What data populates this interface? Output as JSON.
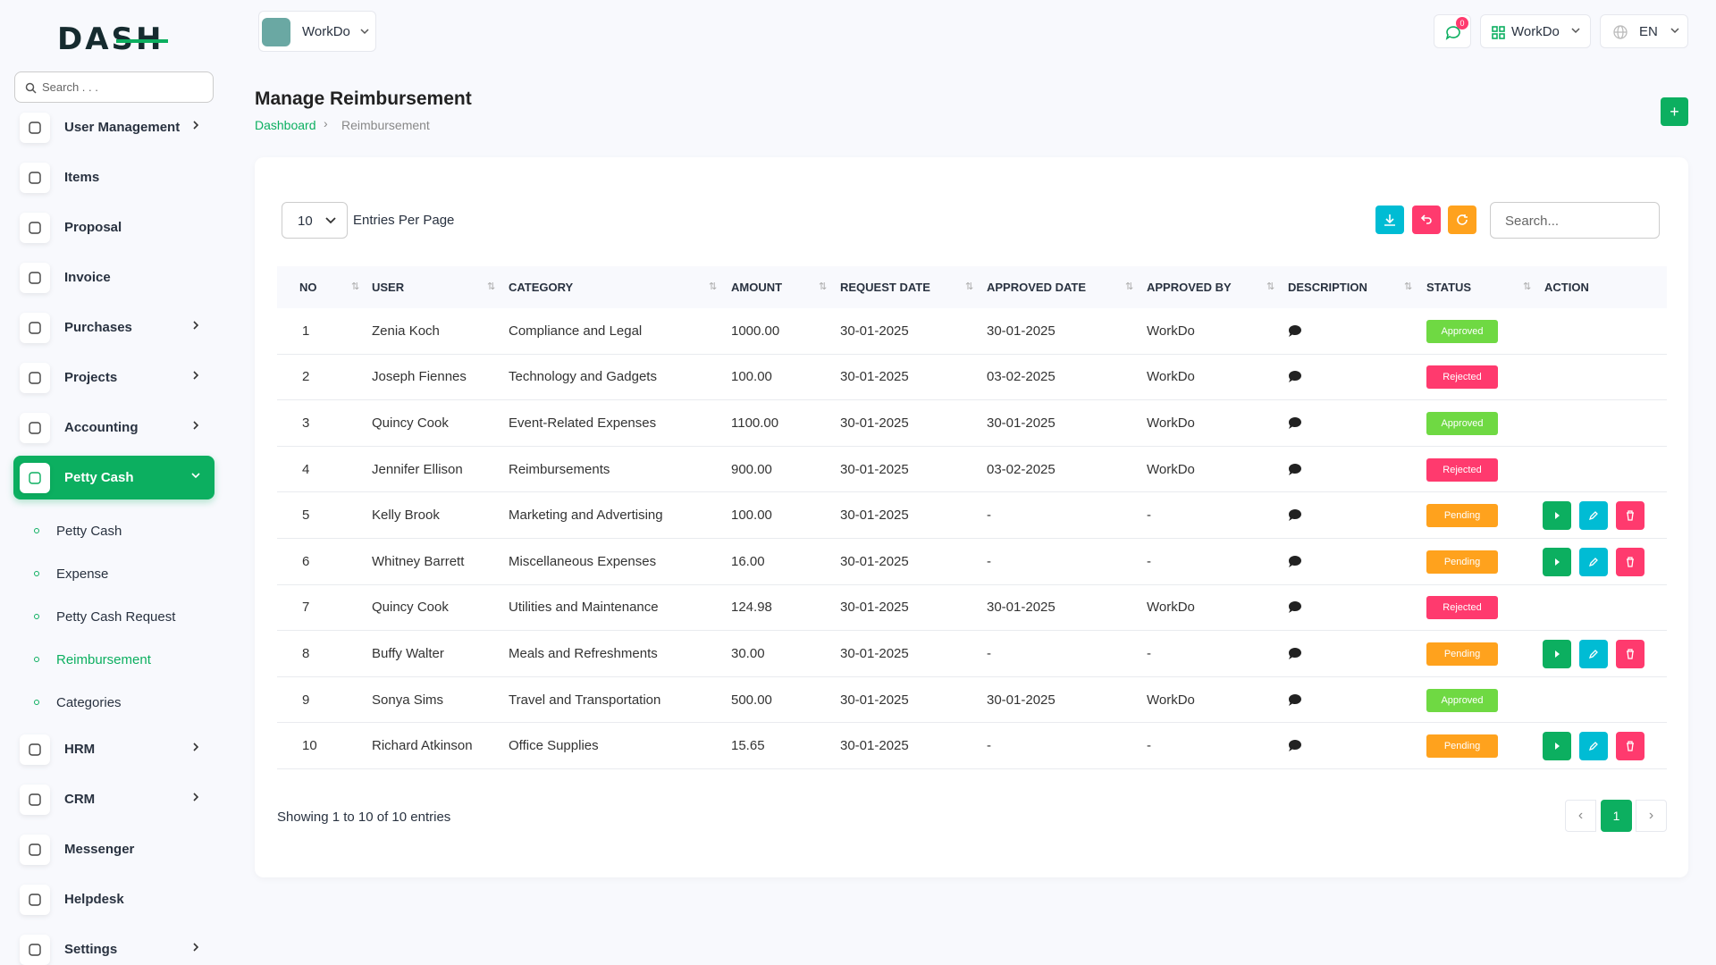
{
  "header": {
    "logo": "DASH",
    "workspace": "WorkDo",
    "notifications": "0",
    "user": "WorkDo",
    "language": "EN"
  },
  "sidebar": {
    "search_placeholder": "Search . . .",
    "menu": [
      {
        "label": "User Management",
        "arrow": true
      },
      {
        "label": "Items",
        "arrow": false
      },
      {
        "label": "Proposal",
        "arrow": false
      },
      {
        "label": "Invoice",
        "arrow": false
      },
      {
        "label": "Purchases",
        "arrow": true
      },
      {
        "label": "Projects",
        "arrow": true
      },
      {
        "label": "Accounting",
        "arrow": true
      },
      {
        "label": "Petty Cash",
        "arrow": true,
        "active": true,
        "submenu": [
          "Petty Cash",
          "Expense",
          "Petty Cash Request",
          "Reimbursement",
          "Categories"
        ],
        "active_sub": 3
      },
      {
        "label": "HRM",
        "arrow": true
      },
      {
        "label": "CRM",
        "arrow": true
      },
      {
        "label": "Messenger",
        "arrow": false
      },
      {
        "label": "Helpdesk",
        "arrow": false
      },
      {
        "label": "Settings",
        "arrow": true
      }
    ]
  },
  "page": {
    "title": "Manage Reimbursement",
    "breadcrumb": [
      "Dashboard",
      "Reimbursement"
    ]
  },
  "table": {
    "entries": "10",
    "entries_label": "Entries Per Page",
    "search_placeholder": "Search...",
    "columns": [
      "NO",
      "USER",
      "CATEGORY",
      "AMOUNT",
      "REQUEST DATE",
      "APPROVED DATE",
      "APPROVED BY",
      "DESCRIPTION",
      "STATUS",
      "ACTION"
    ],
    "status_colors": {
      "Approved": "#6fd943",
      "Rejected": "#ff3a6e",
      "Pending": "#ffa21d"
    },
    "rows": [
      {
        "cells": [
          "1",
          "Zenia Koch",
          "Compliance and Legal",
          "1000.00",
          "30-01-2025",
          "30-01-2025",
          "WorkDo",
          "Approved"
        ],
        "actions": false
      },
      {
        "cells": [
          "2",
          "Joseph Fiennes",
          "Technology and Gadgets",
          "100.00",
          "30-01-2025",
          "03-02-2025",
          "WorkDo",
          "Rejected"
        ],
        "actions": false
      },
      {
        "cells": [
          "3",
          "Quincy Cook",
          "Event-Related Expenses",
          "1100.00",
          "30-01-2025",
          "30-01-2025",
          "WorkDo",
          "Approved"
        ],
        "actions": false
      },
      {
        "cells": [
          "4",
          "Jennifer Ellison",
          "Reimbursements",
          "900.00",
          "30-01-2025",
          "03-02-2025",
          "WorkDo",
          "Rejected"
        ],
        "actions": false
      },
      {
        "cells": [
          "5",
          "Kelly Brook",
          "Marketing and Advertising",
          "100.00",
          "30-01-2025",
          "-",
          "-",
          "Pending"
        ],
        "actions": true
      },
      {
        "cells": [
          "6",
          "Whitney Barrett",
          "Miscellaneous Expenses",
          "16.00",
          "30-01-2025",
          "-",
          "-",
          "Pending"
        ],
        "actions": true
      },
      {
        "cells": [
          "7",
          "Quincy Cook",
          "Utilities and Maintenance",
          "124.98",
          "30-01-2025",
          "30-01-2025",
          "WorkDo",
          "Rejected"
        ],
        "actions": false
      },
      {
        "cells": [
          "8",
          "Buffy Walter",
          "Meals and Refreshments",
          "30.00",
          "30-01-2025",
          "-",
          "-",
          "Pending"
        ],
        "actions": true
      },
      {
        "cells": [
          "9",
          "Sonya Sims",
          "Travel and Transportation",
          "500.00",
          "30-01-2025",
          "30-01-2025",
          "WorkDo",
          "Approved"
        ],
        "actions": false
      },
      {
        "cells": [
          "10",
          "Richard Atkinson",
          "Office Supplies",
          "15.65",
          "30-01-2025",
          "-",
          "-",
          "Pending"
        ],
        "actions": true
      }
    ],
    "footer": "Showing 1 to 10 of 10 entries",
    "page_number": "1"
  }
}
